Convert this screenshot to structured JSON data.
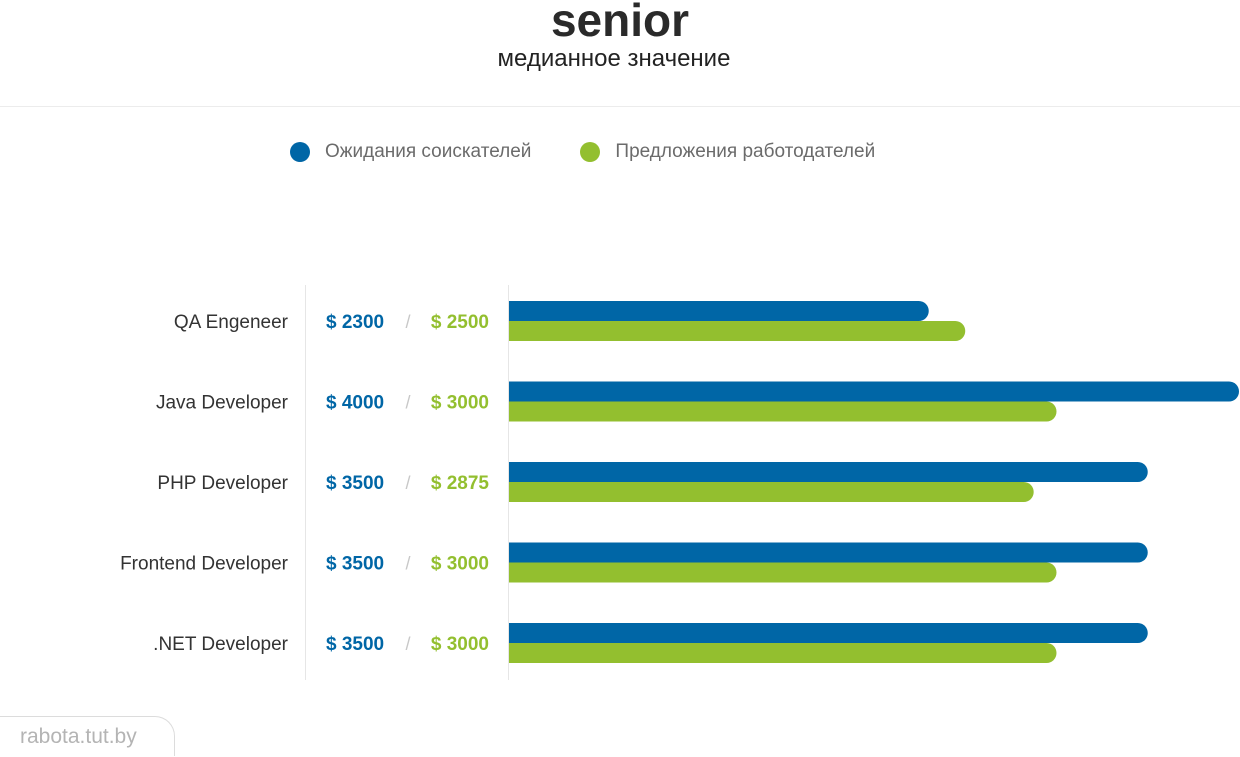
{
  "colors": {
    "expectations": "#0066a6",
    "offers": "#93bf2f",
    "slash": "#c8c8c8",
    "divider": "#e6e6e6"
  },
  "header": {
    "title": "senior",
    "subtitle": "медианное значение"
  },
  "legend": {
    "expectations_label": "Ожидания соискателей",
    "offers_label": "Предложения работодателей"
  },
  "watermark": "rabota.tut.by",
  "chart_data": {
    "type": "bar",
    "orientation": "horizontal",
    "categories": [
      "QA Engeneer",
      "Java Developer",
      "PHP Developer",
      "Frontend Developer",
      ".NET Developer"
    ],
    "series": [
      {
        "name": "Ожидания соискателей",
        "values": [
          2300,
          4000,
          3500,
          3500,
          3500
        ],
        "labels": [
          "$ 2300",
          "$ 4000",
          "$ 3500",
          "$ 3500",
          "$ 3500"
        ]
      },
      {
        "name": "Предложения работодателей",
        "values": [
          2500,
          3000,
          2875,
          3000,
          3000
        ],
        "labels": [
          "$ 2500",
          "$ 3000",
          "$ 2875",
          "$ 3000",
          "$ 3000"
        ]
      }
    ],
    "separator": "/",
    "xlim": [
      0,
      4000
    ],
    "grid": false,
    "legend_position": "top-center"
  }
}
